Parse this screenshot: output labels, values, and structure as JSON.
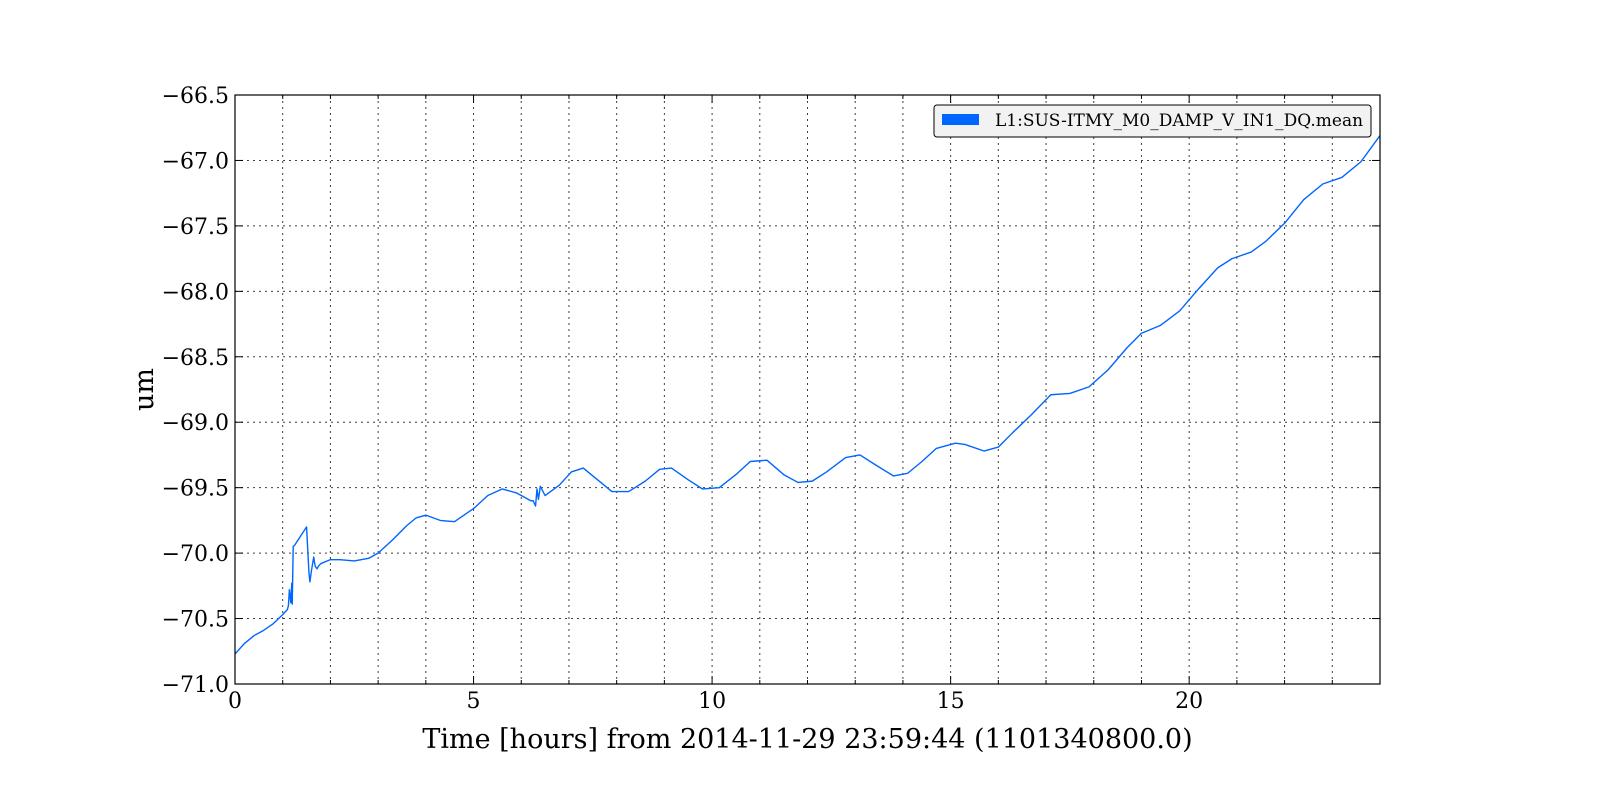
{
  "chart_data": {
    "type": "line",
    "title": "",
    "xlabel": "Time [hours] from 2014-11-29 23:59:44 (1101340800.0)",
    "ylabel": "um",
    "xlim": [
      0,
      24
    ],
    "ylim": [
      -71.0,
      -66.5
    ],
    "x_ticks": [
      0,
      5,
      10,
      15,
      20
    ],
    "x_tick_labels": [
      "0",
      "5",
      "10",
      "15",
      "20"
    ],
    "y_ticks": [
      -71.0,
      -70.5,
      -70.0,
      -69.5,
      -69.0,
      -68.5,
      -68.0,
      -67.5,
      -67.0,
      -66.5
    ],
    "y_tick_labels": [
      "−71.0",
      "−70.5",
      "−70.0",
      "−69.5",
      "−69.0",
      "−68.5",
      "−68.0",
      "−67.5",
      "−67.0",
      "−66.5"
    ],
    "grid": true,
    "legend_position": "top-right",
    "series": [
      {
        "name": "L1:SUS-ITMY_M0_DAMP_V_IN1_DQ.mean",
        "color": "#0066ff",
        "x": [
          0,
          0.2,
          0.4,
          0.6,
          0.8,
          1.0,
          1.1,
          1.12,
          1.14,
          1.17,
          1.19,
          1.2,
          1.22,
          1.25,
          1.5,
          1.55,
          1.57,
          1.6,
          1.65,
          1.68,
          1.72,
          1.75,
          1.8,
          2.0,
          2.2,
          2.5,
          2.8,
          3.0,
          3.3,
          3.6,
          3.8,
          4.0,
          4.3,
          4.6,
          5.0,
          5.3,
          5.6,
          5.9,
          6.2,
          6.25,
          6.3,
          6.33,
          6.36,
          6.4,
          6.5,
          6.8,
          7.05,
          7.3,
          7.6,
          7.9,
          8.25,
          8.6,
          8.9,
          9.15,
          9.5,
          9.8,
          10.15,
          10.5,
          10.8,
          11.15,
          11.5,
          11.8,
          12.1,
          12.4,
          12.8,
          13.1,
          13.4,
          13.8,
          14.1,
          14.4,
          14.7,
          15.1,
          15.3,
          15.7,
          16.0,
          16.3,
          16.7,
          17.1,
          17.5,
          17.9,
          18.3,
          18.7,
          19.0,
          19.4,
          19.8,
          20.2,
          20.6,
          20.9,
          21.3,
          21.6,
          22.0,
          22.4,
          22.8,
          23.2,
          23.6,
          24.0
        ],
        "y": [
          -70.77,
          -70.69,
          -70.63,
          -70.59,
          -70.54,
          -70.47,
          -70.43,
          -70.4,
          -70.28,
          -70.38,
          -70.23,
          -70.39,
          -69.95,
          -69.94,
          -69.8,
          -70.15,
          -70.22,
          -70.14,
          -70.03,
          -70.1,
          -70.12,
          -70.1,
          -70.08,
          -70.05,
          -70.05,
          -70.06,
          -70.04,
          -70.0,
          -69.9,
          -69.79,
          -69.73,
          -69.71,
          -69.75,
          -69.76,
          -69.66,
          -69.56,
          -69.51,
          -69.54,
          -69.6,
          -69.6,
          -69.64,
          -69.51,
          -69.59,
          -69.49,
          -69.56,
          -69.48,
          -69.38,
          -69.35,
          -69.44,
          -69.53,
          -69.53,
          -69.45,
          -69.36,
          -69.35,
          -69.44,
          -69.51,
          -69.5,
          -69.4,
          -69.3,
          -69.29,
          -69.4,
          -69.46,
          -69.45,
          -69.38,
          -69.27,
          -69.25,
          -69.32,
          -69.41,
          -69.39,
          -69.3,
          -69.2,
          -69.16,
          -69.17,
          -69.22,
          -69.19,
          -69.08,
          -68.94,
          -68.79,
          -68.78,
          -68.73,
          -68.6,
          -68.43,
          -68.32,
          -68.26,
          -68.15,
          -67.98,
          -67.82,
          -67.75,
          -67.7,
          -67.62,
          -67.48,
          -67.3,
          -67.18,
          -67.13,
          -67.01,
          -66.81
        ]
      }
    ]
  }
}
